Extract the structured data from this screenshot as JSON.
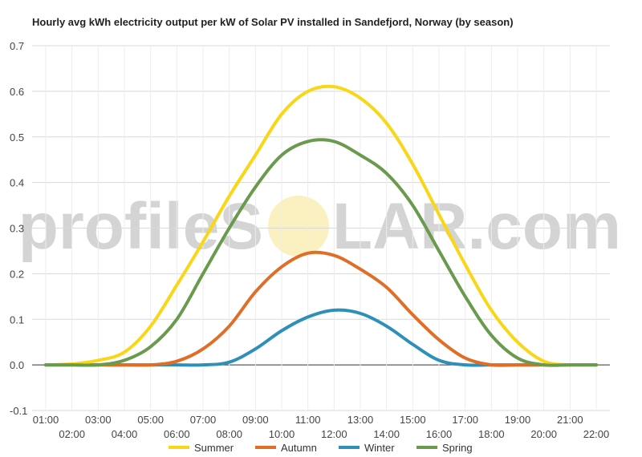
{
  "chart_data": {
    "type": "line",
    "title": "Hourly avg kWh electricity output per kW of Solar PV installed in Sandefjord, Norway (by season)",
    "xlabel": "",
    "ylabel": "",
    "ylim": [
      -0.1,
      0.7
    ],
    "y_ticks": [
      "-0.1",
      "0.0",
      "0.1",
      "0.2",
      "0.3",
      "0.4",
      "0.5",
      "0.6",
      "0.7"
    ],
    "categories": [
      "01:00",
      "02:00",
      "03:00",
      "04:00",
      "05:00",
      "06:00",
      "07:00",
      "08:00",
      "09:00",
      "10:00",
      "11:00",
      "12:00",
      "13:00",
      "14:00",
      "15:00",
      "16:00",
      "17:00",
      "18:00",
      "19:00",
      "20:00",
      "21:00",
      "22:00"
    ],
    "grid": true,
    "legend_position": "bottom",
    "series": [
      {
        "name": "Summer",
        "color": "#f9d616",
        "values": [
          0.0,
          0.002,
          0.01,
          0.028,
          0.085,
          0.175,
          0.27,
          0.37,
          0.46,
          0.55,
          0.6,
          0.61,
          0.585,
          0.53,
          0.44,
          0.33,
          0.22,
          0.12,
          0.05,
          0.008,
          0.0,
          0.0
        ]
      },
      {
        "name": "Autumn",
        "color": "#e06e27",
        "values": [
          0.0,
          0.0,
          0.0,
          0.0,
          0.0,
          0.008,
          0.035,
          0.085,
          0.16,
          0.215,
          0.245,
          0.24,
          0.21,
          0.17,
          0.11,
          0.055,
          0.015,
          0.0,
          0.0,
          0.0,
          0.0,
          0.0
        ]
      },
      {
        "name": "Winter",
        "color": "#2e90b9",
        "values": [
          0.0,
          0.0,
          0.0,
          0.0,
          0.0,
          0.0,
          0.0,
          0.006,
          0.035,
          0.075,
          0.105,
          0.12,
          0.113,
          0.085,
          0.045,
          0.01,
          0.0,
          0.0,
          0.0,
          0.0,
          0.0,
          0.0
        ]
      },
      {
        "name": "Spring",
        "color": "#6a9a4e",
        "values": [
          0.0,
          0.0,
          0.0,
          0.01,
          0.04,
          0.1,
          0.2,
          0.3,
          0.39,
          0.46,
          0.49,
          0.49,
          0.46,
          0.42,
          0.35,
          0.25,
          0.15,
          0.065,
          0.015,
          0.0,
          0.0,
          0.0
        ]
      }
    ]
  },
  "watermark": {
    "left_text": "profileS",
    "right_text": "LAR.com",
    "sun_color": "#fbf0bf"
  }
}
